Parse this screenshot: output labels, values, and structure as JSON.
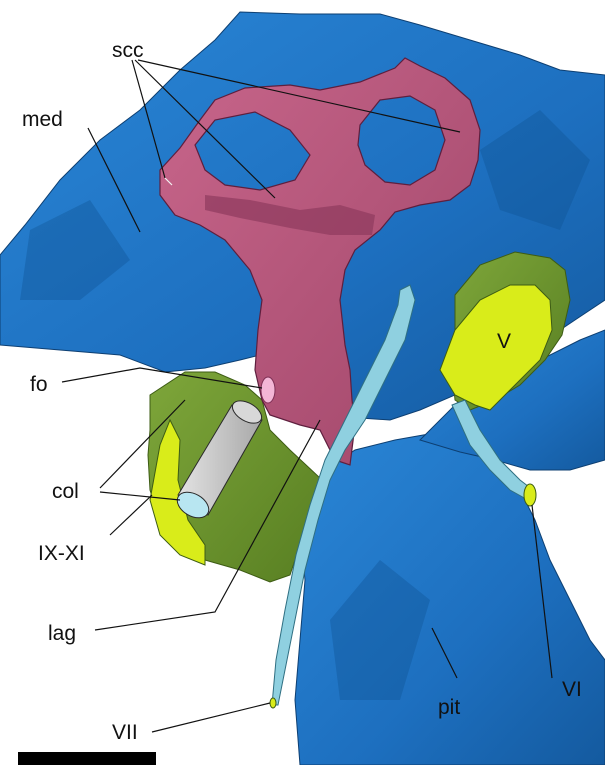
{
  "figure": {
    "labels": {
      "scc": "scc",
      "med": "med",
      "fo": "fo",
      "col": "col",
      "ix_xi": "IX-XI",
      "lag": "lag",
      "vii": "VII",
      "v": "V",
      "vi": "VI",
      "pit": "pit"
    }
  },
  "colors": {
    "bone": "#1f78c8",
    "bone_shadow": "#0f4f8f",
    "inner_ear": "#b8577c",
    "inner_ear_dark": "#7e2f55",
    "fenestra_cover": "#6e9a2e",
    "nerve_yellow": "#d9ec1a",
    "nerve_cyan": "#8fd0e0",
    "columella": "#bdbdbd",
    "scale_bar": "#000000"
  }
}
